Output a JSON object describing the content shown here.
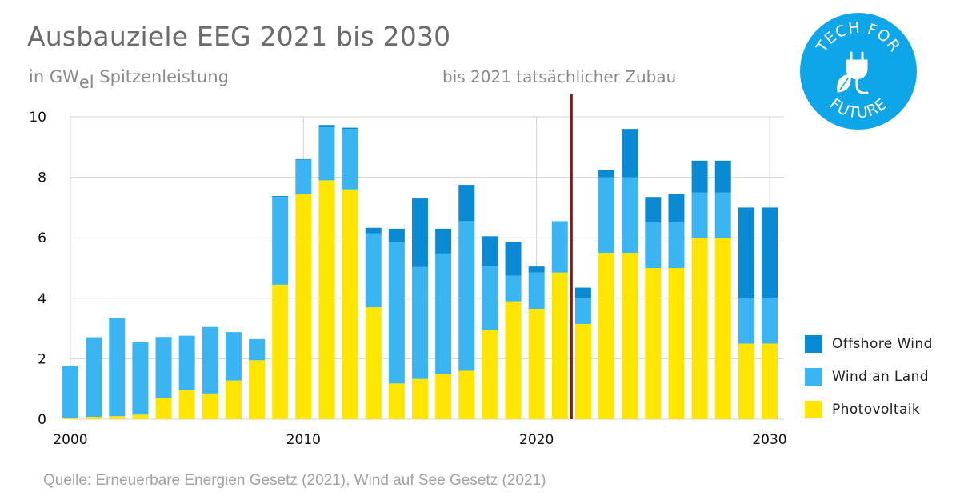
{
  "header": {
    "title": "Ausbauziele EEG 2021 bis 2030",
    "subtitle_prefix": "in GW",
    "subtitle_sub": "el",
    "subtitle_suffix": " Spitzenleistung",
    "annotation": "bis 2021 tatsächlicher Zubau"
  },
  "logo": {
    "top_text": "TECH FOR",
    "bottom_text": "FUTURE",
    "icon": "plug-leaf-icon",
    "color": "#0ea5e9"
  },
  "source": "Quelle: Erneuerbare Energien Gesetz (2021), Wind auf See Gesetz (2021)",
  "colors": {
    "photovoltaik": "#ffe600",
    "wind_land": "#3bb4f2",
    "offshore": "#0a8ad2",
    "marker": "#9b1111",
    "grid": "#d4d4d4"
  },
  "chart_data": {
    "type": "bar",
    "stacked": true,
    "x": [
      2000,
      2001,
      2002,
      2003,
      2004,
      2005,
      2006,
      2007,
      2008,
      2009,
      2010,
      2011,
      2012,
      2013,
      2014,
      2015,
      2016,
      2017,
      2018,
      2019,
      2020,
      2021,
      2022,
      2023,
      2024,
      2025,
      2026,
      2027,
      2028,
      2029,
      2030
    ],
    "series": [
      {
        "name": "Photovoltaik",
        "color": "#ffe600",
        "values": [
          0.05,
          0.08,
          0.1,
          0.15,
          0.7,
          0.95,
          0.85,
          1.28,
          1.95,
          4.45,
          7.45,
          7.9,
          7.6,
          3.7,
          1.18,
          1.33,
          1.48,
          1.6,
          2.95,
          3.9,
          3.65,
          4.85,
          3.15,
          5.5,
          5.5,
          5.0,
          5.0,
          6.0,
          6.0,
          2.5,
          2.5
        ]
      },
      {
        "name": "Wind an Land",
        "color": "#3bb4f2",
        "values": [
          1.7,
          2.63,
          3.24,
          2.4,
          2.02,
          1.81,
          2.2,
          1.6,
          0.7,
          2.9,
          1.13,
          1.75,
          2.0,
          2.45,
          4.67,
          3.7,
          4.0,
          4.95,
          2.1,
          0.85,
          1.2,
          1.7,
          0.85,
          2.5,
          2.5,
          1.5,
          1.5,
          1.5,
          1.5,
          1.5,
          1.5
        ]
      },
      {
        "name": "Offshore Wind",
        "color": "#0a8ad2",
        "values": [
          0,
          0,
          0,
          0,
          0,
          0,
          0,
          0,
          0,
          0.03,
          0.02,
          0.08,
          0.04,
          0.18,
          0.45,
          2.27,
          0.82,
          1.2,
          1.0,
          1.1,
          0.2,
          0,
          0.35,
          0.25,
          1.6,
          0.85,
          0.95,
          1.05,
          1.05,
          3.0,
          3.0
        ]
      }
    ],
    "legend": [
      "Offshore Wind",
      "Wind an Land",
      "Photovoltaik"
    ],
    "legend_position": "right",
    "y_ticks": [
      "0",
      "2",
      "4",
      "6",
      "8",
      "10"
    ],
    "x_ticks": [
      "2000",
      "2010",
      "2020",
      "2030"
    ],
    "ylim": [
      0,
      10
    ],
    "xlim": [
      2000,
      2030
    ],
    "grid": true,
    "marker_line_x": 2021.5
  }
}
